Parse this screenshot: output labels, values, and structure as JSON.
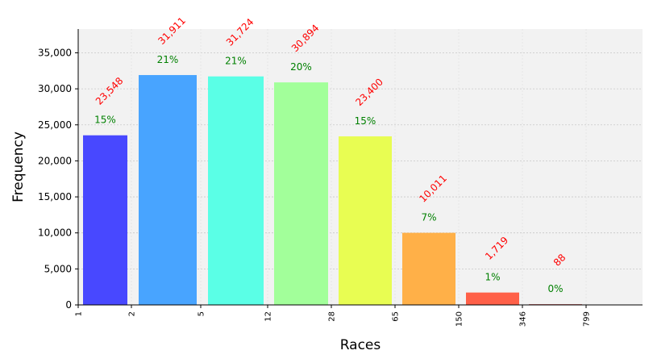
{
  "chart_data": {
    "type": "bar",
    "xlabel": "Races",
    "ylabel": "Frequency",
    "ylim": [
      0,
      38300
    ],
    "yticks": [
      0,
      5000,
      10000,
      15000,
      20000,
      25000,
      30000,
      35000
    ],
    "ytick_labels": [
      "0",
      "5,000",
      "10,000",
      "15,000",
      "20,000",
      "25,000",
      "30,000",
      "35,000"
    ],
    "xtick_labels": [
      "1",
      "2",
      "5",
      "12",
      "28",
      "65",
      "150",
      "346",
      "799"
    ],
    "grid": true,
    "bins": [
      {
        "value": 23548,
        "count_label": "23,548",
        "pct_label": "15%",
        "color": "#4848ff"
      },
      {
        "value": 31911,
        "count_label": "31,911",
        "pct_label": "21%",
        "color": "#48a4ff"
      },
      {
        "value": 31724,
        "count_label": "31,724",
        "pct_label": "21%",
        "color": "#5affe6"
      },
      {
        "value": 30894,
        "count_label": "30,894",
        "pct_label": "20%",
        "color": "#a2ff9a"
      },
      {
        "value": 23400,
        "count_label": "23,400",
        "pct_label": "15%",
        "color": "#e8fd52"
      },
      {
        "value": 10011,
        "count_label": "10,011",
        "pct_label": "7%",
        "color": "#ffb048"
      },
      {
        "value": 1719,
        "count_label": "1,719",
        "pct_label": "1%",
        "color": "#ff6048"
      },
      {
        "value": 88,
        "count_label": "88",
        "pct_label": "0%",
        "color": "#b02020"
      }
    ]
  }
}
